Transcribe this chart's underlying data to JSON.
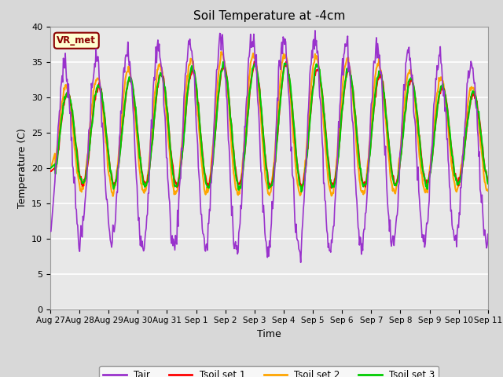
{
  "title": "Soil Temperature at -4cm",
  "xlabel": "Time",
  "ylabel": "Temperature (C)",
  "ylim": [
    0,
    40
  ],
  "yticks": [
    0,
    5,
    10,
    15,
    20,
    25,
    30,
    35,
    40
  ],
  "xlabels": [
    "Aug 27",
    "Aug 28",
    "Aug 29",
    "Aug 30",
    "Aug 31",
    "Sep 1",
    "Sep 2",
    "Sep 3",
    "Sep 4",
    "Sep 5",
    "Sep 6",
    "Sep 7",
    "Sep 8",
    "Sep 9",
    "Sep 10",
    "Sep 11"
  ],
  "annotation_text": "VR_met",
  "annotation_color": "#8B0000",
  "annotation_bg": "#FFFFD0",
  "line_colors": {
    "Tair": "#9932CC",
    "Tsoil set 1": "#FF0000",
    "Tsoil set 2": "#FFA500",
    "Tsoil set 3": "#00CC00"
  },
  "line_widths": {
    "Tair": 1.2,
    "Tsoil set 1": 1.5,
    "Tsoil set 2": 1.5,
    "Tsoil set 3": 1.5
  },
  "bg_color": "#D8D8D8",
  "plot_bg": "#E8E8E8",
  "grid_color": "#FFFFFF",
  "figsize": [
    6.4,
    4.8
  ],
  "dpi": 100
}
